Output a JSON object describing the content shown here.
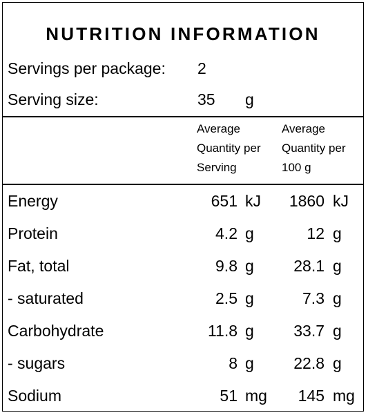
{
  "title": "NUTRITION INFORMATION",
  "servings": {
    "label": "Servings per package:",
    "value": "2"
  },
  "serving_size": {
    "label": "Serving size:",
    "value": "35",
    "unit": "g"
  },
  "headers": {
    "per_serving": [
      "Average",
      "Quantity per",
      "Serving"
    ],
    "per_100g": [
      "Average",
      "Quantity per",
      "100 g"
    ]
  },
  "nutrients": [
    {
      "name": "Energy",
      "serving": "651",
      "serving_unit": "kJ",
      "per100": "1860",
      "per100_unit": "kJ"
    },
    {
      "name": "Protein",
      "serving": "4.2",
      "serving_unit": "g",
      "per100": "12",
      "per100_unit": "g"
    },
    {
      "name": "Fat, total",
      "serving": "9.8",
      "serving_unit": "g",
      "per100": "28.1",
      "per100_unit": "g"
    },
    {
      "name": "- saturated",
      "serving": "2.5",
      "serving_unit": "g",
      "per100": "7.3",
      "per100_unit": "g"
    },
    {
      "name": "Carbohydrate",
      "serving": "11.8",
      "serving_unit": "g",
      "per100": "33.7",
      "per100_unit": "g"
    },
    {
      "name": "- sugars",
      "serving": "8",
      "serving_unit": "g",
      "per100": "22.8",
      "per100_unit": "g"
    },
    {
      "name": "Sodium",
      "serving": "51",
      "serving_unit": "mg",
      "per100": "145",
      "per100_unit": "mg"
    }
  ]
}
